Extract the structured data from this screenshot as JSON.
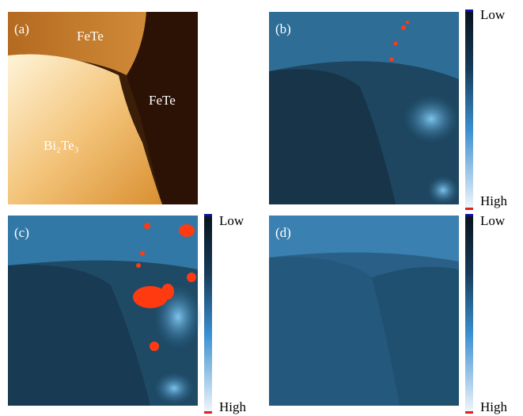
{
  "panels": [
    {
      "label": "(a)",
      "annotations": [
        "FeTe",
        "FeTe",
        "Bi₂Te₃"
      ]
    },
    {
      "label": "(b)",
      "colorbar": {
        "low": "Low",
        "high": "High"
      }
    },
    {
      "label": "(c)",
      "colorbar": {
        "low": "Low",
        "high": "High"
      }
    },
    {
      "label": "(d)",
      "colorbar": {
        "low": "Low",
        "high": "High"
      }
    }
  ]
}
